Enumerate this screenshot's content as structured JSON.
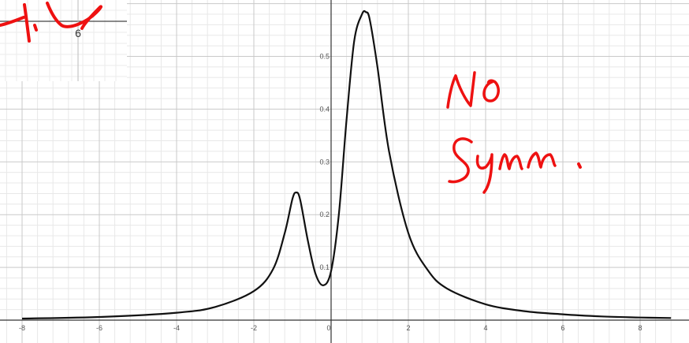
{
  "chart_data": {
    "type": "line",
    "title": "",
    "xlabel": "",
    "ylabel": "",
    "xlim": [
      -8.3,
      8.9
    ],
    "ylim": [
      -0.01,
      0.6
    ],
    "grid": true,
    "x_ticks": [
      -8,
      -6,
      -4,
      -2,
      0,
      2,
      4,
      6,
      8
    ],
    "y_ticks": [
      0.1,
      0.2,
      0.3,
      0.4,
      0.5
    ],
    "series": [
      {
        "color": "#111111",
        "x": [
          -8,
          -6,
          -4,
          -3,
          -2,
          -1.5,
          -1.2,
          -1.0,
          -0.9,
          -0.8,
          -0.6,
          -0.4,
          -0.2,
          0,
          0.2,
          0.4,
          0.6,
          0.8,
          0.9,
          1.0,
          1.2,
          1.5,
          2,
          2.5,
          3,
          4,
          5,
          6,
          7,
          8,
          8.8
        ],
        "y": [
          0.003,
          0.006,
          0.014,
          0.025,
          0.055,
          0.097,
          0.165,
          0.23,
          0.242,
          0.228,
          0.15,
          0.087,
          0.066,
          0.093,
          0.2,
          0.38,
          0.53,
          0.58,
          0.584,
          0.57,
          0.48,
          0.32,
          0.165,
          0.095,
          0.06,
          0.03,
          0.017,
          0.011,
          0.007,
          0.005,
          0.004
        ]
      }
    ],
    "annotations": [
      {
        "text": "No Symm.",
        "style": "handwritten",
        "color": "#ee1111"
      }
    ],
    "inset": {
      "tick_label": "6"
    }
  }
}
